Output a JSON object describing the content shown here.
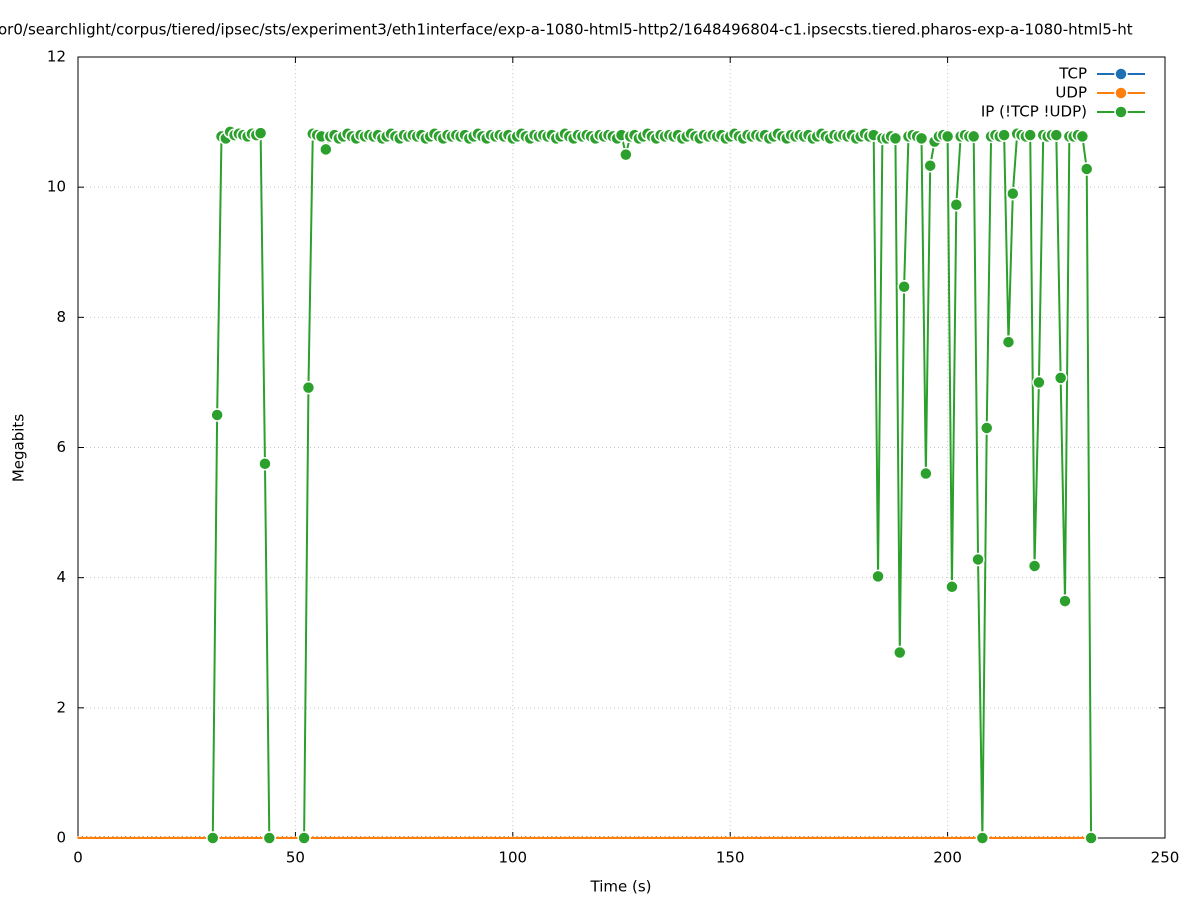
{
  "chart_data": {
    "type": "line",
    "title": "or0/searchlight/corpus/tiered/ipsec/sts/experiment3/eth1interface/exp-a-1080-html5-http2/1648496804-c1.ipsecsts.tiered.pharos-exp-a-1080-html5-ht",
    "xlabel": "Time (s)",
    "ylabel": "Megabits",
    "xlim": [
      0,
      250
    ],
    "ylim": [
      0,
      12
    ],
    "xticks": [
      0,
      50,
      100,
      150,
      200,
      250
    ],
    "yticks": [
      0,
      2,
      4,
      6,
      8,
      10,
      12
    ],
    "grid": true,
    "legend": "upper right",
    "x": [
      0,
      1,
      2,
      3,
      4,
      5,
      6,
      7,
      8,
      9,
      10,
      11,
      12,
      13,
      14,
      15,
      16,
      17,
      18,
      19,
      20,
      21,
      22,
      23,
      24,
      25,
      26,
      27,
      28,
      29,
      30,
      31,
      32,
      33,
      34,
      35,
      36,
      37,
      38,
      39,
      40,
      41,
      42,
      43,
      44,
      45,
      46,
      47,
      48,
      49,
      50,
      51,
      52,
      53,
      54,
      55,
      56,
      57,
      58,
      59,
      60,
      61,
      62,
      63,
      64,
      65,
      66,
      67,
      68,
      69,
      70,
      71,
      72,
      73,
      74,
      75,
      76,
      77,
      78,
      79,
      80,
      81,
      82,
      83,
      84,
      85,
      86,
      87,
      88,
      89,
      90,
      91,
      92,
      93,
      94,
      95,
      96,
      97,
      98,
      99,
      100,
      101,
      102,
      103,
      104,
      105,
      106,
      107,
      108,
      109,
      110,
      111,
      112,
      113,
      114,
      115,
      116,
      117,
      118,
      119,
      120,
      121,
      122,
      123,
      124,
      125,
      126,
      127,
      128,
      129,
      130,
      131,
      132,
      133,
      134,
      135,
      136,
      137,
      138,
      139,
      140,
      141,
      142,
      143,
      144,
      145,
      146,
      147,
      148,
      149,
      150,
      151,
      152,
      153,
      154,
      155,
      156,
      157,
      158,
      159,
      160,
      161,
      162,
      163,
      164,
      165,
      166,
      167,
      168,
      169,
      170,
      171,
      172,
      173,
      174,
      175,
      176,
      177,
      178,
      179,
      180,
      181,
      182,
      183,
      184,
      185,
      186,
      187,
      188,
      189,
      190,
      191,
      192,
      193,
      194,
      195,
      196,
      197,
      198,
      199,
      200,
      201,
      202,
      203,
      204,
      205,
      206,
      207,
      208,
      209,
      210,
      211,
      212,
      213,
      214,
      215,
      216,
      217,
      218,
      219,
      220,
      221,
      222,
      223,
      224,
      225,
      226,
      227,
      228,
      229,
      230,
      231,
      232,
      233
    ],
    "series": [
      {
        "name": "TCP",
        "color": "#1f6fb4",
        "values": [
          0,
          0,
          0,
          0,
          0,
          0,
          0,
          0,
          0,
          0,
          0,
          0,
          0,
          0,
          0,
          0,
          0,
          0,
          0,
          0,
          0,
          0,
          0,
          0,
          0,
          0,
          0,
          0,
          0,
          0,
          0,
          0,
          0,
          0,
          0,
          0,
          0,
          0,
          0,
          0,
          0,
          0,
          0,
          0,
          0,
          0,
          0,
          0,
          0,
          0,
          0,
          0,
          0,
          0,
          0,
          0,
          0,
          0,
          0,
          0,
          0,
          0,
          0,
          0,
          0,
          0,
          0,
          0,
          0,
          0,
          0,
          0,
          0,
          0,
          0,
          0,
          0,
          0,
          0,
          0,
          0,
          0,
          0,
          0,
          0,
          0,
          0,
          0,
          0,
          0,
          0,
          0,
          0,
          0,
          0,
          0,
          0,
          0,
          0,
          0,
          0,
          0,
          0,
          0,
          0,
          0,
          0,
          0,
          0,
          0,
          0,
          0,
          0,
          0,
          0,
          0,
          0,
          0,
          0,
          0,
          0,
          0,
          0,
          0,
          0,
          0,
          0,
          0,
          0,
          0,
          0,
          0,
          0,
          0,
          0,
          0,
          0,
          0,
          0,
          0,
          0,
          0,
          0,
          0,
          0,
          0,
          0,
          0,
          0,
          0,
          0,
          0,
          0,
          0,
          0,
          0,
          0,
          0,
          0,
          0,
          0,
          0,
          0,
          0,
          0,
          0,
          0,
          0,
          0,
          0,
          0,
          0,
          0,
          0,
          0,
          0,
          0,
          0,
          0,
          0,
          0,
          0,
          0,
          0,
          0,
          0,
          0,
          0,
          0,
          0,
          0,
          0,
          0,
          0,
          0,
          0,
          0,
          0,
          0,
          0,
          0,
          0,
          0,
          0,
          0,
          0,
          0,
          0,
          0,
          0,
          0,
          0,
          0,
          0,
          0,
          0,
          0,
          0,
          0,
          0,
          0,
          0,
          0,
          0,
          0,
          0,
          0,
          0,
          0,
          0,
          0,
          0,
          0,
          0
        ]
      },
      {
        "name": "UDP",
        "color": "#ff7f0e",
        "values": [
          0,
          0,
          0,
          0,
          0,
          0,
          0,
          0,
          0,
          0,
          0,
          0,
          0,
          0,
          0,
          0,
          0,
          0,
          0,
          0,
          0,
          0,
          0,
          0,
          0,
          0,
          0,
          0,
          0,
          0,
          0,
          0,
          0,
          0,
          0,
          0,
          0,
          0,
          0,
          0,
          0,
          0,
          0,
          0,
          0,
          0,
          0,
          0,
          0,
          0,
          0,
          0,
          0,
          0,
          0,
          0,
          0,
          0,
          0,
          0,
          0,
          0,
          0,
          0,
          0,
          0,
          0,
          0,
          0,
          0,
          0,
          0,
          0,
          0,
          0,
          0,
          0,
          0,
          0,
          0,
          0,
          0,
          0,
          0,
          0,
          0,
          0,
          0,
          0,
          0,
          0,
          0,
          0,
          0,
          0,
          0,
          0,
          0,
          0,
          0,
          0,
          0,
          0,
          0,
          0,
          0,
          0,
          0,
          0,
          0,
          0,
          0,
          0,
          0,
          0,
          0,
          0,
          0,
          0,
          0,
          0,
          0,
          0,
          0,
          0,
          0,
          0,
          0,
          0,
          0,
          0,
          0,
          0,
          0,
          0,
          0,
          0,
          0,
          0,
          0,
          0,
          0,
          0,
          0,
          0,
          0,
          0,
          0,
          0,
          0,
          0,
          0,
          0,
          0,
          0,
          0,
          0,
          0,
          0,
          0,
          0,
          0,
          0,
          0,
          0,
          0,
          0,
          0,
          0,
          0,
          0,
          0,
          0,
          0,
          0,
          0,
          0,
          0,
          0,
          0,
          0,
          0,
          0,
          0,
          0,
          0,
          0,
          0,
          0,
          0,
          0,
          0,
          0,
          0,
          0,
          0,
          0,
          0,
          0,
          0,
          0,
          0,
          0,
          0,
          0,
          0,
          0,
          0,
          0,
          0,
          0,
          0,
          0,
          0,
          0,
          0,
          0,
          0,
          0,
          0,
          0,
          0,
          0,
          0,
          0,
          0,
          0,
          0,
          0,
          0,
          0,
          0,
          0,
          0
        ]
      },
      {
        "name": "IP (!TCP  !UDP)",
        "color": "#2ca02c",
        "values": [
          null,
          null,
          null,
          null,
          null,
          null,
          null,
          null,
          null,
          null,
          null,
          null,
          null,
          null,
          null,
          null,
          null,
          null,
          null,
          null,
          null,
          null,
          null,
          null,
          null,
          null,
          null,
          null,
          null,
          null,
          null,
          0,
          6.5,
          10.78,
          10.75,
          10.85,
          10.8,
          10.82,
          10.8,
          10.78,
          10.82,
          10.8,
          10.83,
          5.75,
          0,
          null,
          null,
          null,
          null,
          null,
          null,
          null,
          0,
          6.92,
          10.82,
          10.8,
          10.78,
          10.58,
          10.78,
          10.8,
          10.75,
          10.78,
          10.82,
          10.78,
          10.75,
          10.8,
          10.78,
          10.8,
          10.78,
          10.8,
          10.75,
          10.78,
          10.82,
          10.78,
          10.75,
          10.8,
          10.78,
          10.8,
          10.78,
          10.8,
          10.75,
          10.78,
          10.82,
          10.78,
          10.75,
          10.8,
          10.78,
          10.8,
          10.78,
          10.8,
          10.75,
          10.78,
          10.82,
          10.78,
          10.75,
          10.8,
          10.78,
          10.8,
          10.78,
          10.8,
          10.75,
          10.78,
          10.82,
          10.78,
          10.75,
          10.8,
          10.78,
          10.8,
          10.78,
          10.8,
          10.75,
          10.78,
          10.82,
          10.78,
          10.75,
          10.8,
          10.78,
          10.8,
          10.78,
          10.75,
          10.8,
          10.78,
          10.8,
          10.78,
          10.75,
          10.8,
          10.5,
          10.78,
          10.8,
          10.75,
          10.78,
          10.82,
          10.78,
          10.75,
          10.8,
          10.78,
          10.8,
          10.78,
          10.8,
          10.75,
          10.78,
          10.82,
          10.78,
          10.75,
          10.8,
          10.78,
          10.8,
          10.78,
          10.8,
          10.75,
          10.78,
          10.82,
          10.78,
          10.75,
          10.8,
          10.78,
          10.8,
          10.78,
          10.8,
          10.75,
          10.78,
          10.82,
          10.78,
          10.75,
          10.8,
          10.78,
          10.8,
          10.78,
          10.8,
          10.75,
          10.78,
          10.82,
          10.78,
          10.75,
          10.8,
          10.78,
          10.8,
          10.78,
          10.8,
          10.75,
          10.78,
          10.82,
          10.78,
          10.8,
          4.02,
          10.75,
          10.75,
          10.78,
          10.75,
          2.85,
          8.47,
          10.78,
          10.8,
          10.78,
          10.75,
          5.6,
          10.33,
          10.7,
          10.78,
          10.8,
          10.78,
          3.86,
          9.73,
          10.78,
          10.8,
          10.78,
          10.78,
          4.28,
          0,
          6.3,
          10.78,
          10.8,
          10.78,
          10.8,
          7.62,
          9.9,
          10.82,
          10.8,
          10.78,
          10.8,
          4.18,
          7.0,
          10.8,
          10.78,
          10.8,
          10.8,
          7.07,
          3.64,
          10.78,
          10.78,
          10.8,
          10.78,
          10.28,
          0
        ]
      }
    ]
  }
}
